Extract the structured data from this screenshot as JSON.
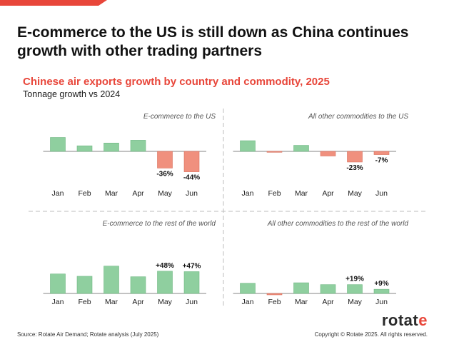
{
  "headline": "E-commerce to the US is still down as China continues growth with other trading partners",
  "subtitle": "Chinese air exports growth by country and commodity, 2025",
  "subsubtitle": "Tonnage growth vs 2024",
  "source": "Source: Rotate Air Demand; Rotate analysis (July 2025)",
  "copyright": "Copyright © Rotate 2025. All rights reserved.",
  "logo": {
    "text_main": "rotat",
    "text_accent": "e"
  },
  "colors": {
    "positive": "#8fcf9f",
    "negative": "#f0907e",
    "accent": "#e8463a"
  },
  "chart_data": [
    {
      "type": "bar",
      "title": "E-commerce to the US",
      "categories": [
        "Jan",
        "Feb",
        "Mar",
        "Apr",
        "May",
        "Jun"
      ],
      "values": [
        30,
        12,
        18,
        24,
        -36,
        -44
      ],
      "data_labels": [
        "",
        "",
        "",
        "",
        "-36%",
        "-44%"
      ]
    },
    {
      "type": "bar",
      "title": "All other commodities to the US",
      "categories": [
        "Jan",
        "Feb",
        "Mar",
        "Apr",
        "May",
        "Jun"
      ],
      "values": [
        23,
        -2,
        13,
        -10,
        -23,
        -7
      ],
      "data_labels": [
        "",
        "",
        "",
        "",
        "-23%",
        "-7%"
      ]
    },
    {
      "type": "bar",
      "title": "E-commerce to the rest of the world",
      "categories": [
        "Jan",
        "Feb",
        "Mar",
        "Apr",
        "May",
        "Jun"
      ],
      "values": [
        42,
        37,
        59,
        36,
        48,
        47
      ],
      "data_labels": [
        "",
        "",
        "",
        "",
        "+48%",
        "+47%"
      ]
    },
    {
      "type": "bar",
      "title": "All other commodities to the rest of the world",
      "categories": [
        "Jan",
        "Feb",
        "Mar",
        "Apr",
        "May",
        "Jun"
      ],
      "values": [
        22,
        -3,
        23,
        19,
        19,
        9
      ],
      "data_labels": [
        "",
        "",
        "",
        "",
        "+19%",
        "+9%"
      ]
    }
  ]
}
